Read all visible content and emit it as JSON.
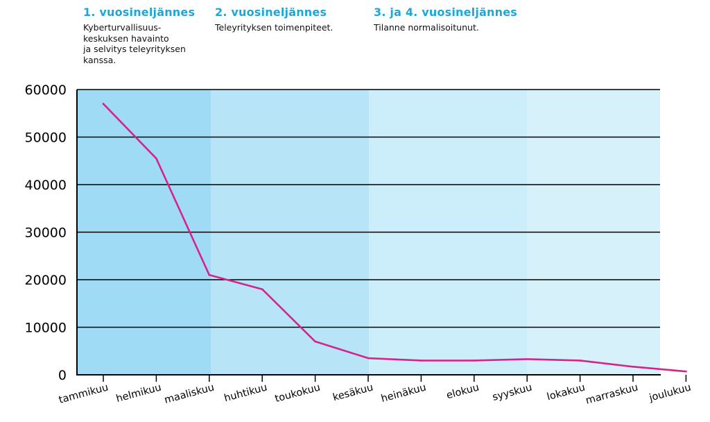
{
  "quarters": [
    {
      "title": "1. vuosineljännes",
      "lines": [
        "Kyberturvallisuus-",
        "keskuksen havainto",
        "ja selvitys teleyrityksen",
        "kanssa."
      ]
    },
    {
      "title": "2. vuosineljännes",
      "lines": [
        "Teleyrityksen toimenpiteet."
      ]
    },
    {
      "title": "3. ja 4. vuosineljännes",
      "lines": [
        "Tilanne normalisoitunut."
      ]
    }
  ],
  "chart_data": {
    "type": "line",
    "categories": [
      "tammikuu",
      "helmikuu",
      "maaliskuu",
      "huhtikuu",
      "toukokuu",
      "kesäkuu",
      "heinäkuu",
      "elokuu",
      "syyskuu",
      "lokakuu",
      "marraskuu",
      "joulukuu"
    ],
    "values": [
      57000,
      45500,
      21000,
      18000,
      7000,
      3500,
      3000,
      3000,
      3300,
      3000,
      1700,
      700
    ],
    "ylim": [
      0,
      60000
    ],
    "yticks": [
      "60000",
      "50000",
      "40000",
      "30000",
      "20000",
      "10000",
      "0"
    ],
    "grid": true,
    "colors": {
      "line": "#d6238a",
      "band_q1": "#9fdbf4",
      "band_q2": "#b7e5f7",
      "band_q3": "#cbeefa",
      "band_q4": "#d7f1fb",
      "grid": "#000000"
    }
  }
}
